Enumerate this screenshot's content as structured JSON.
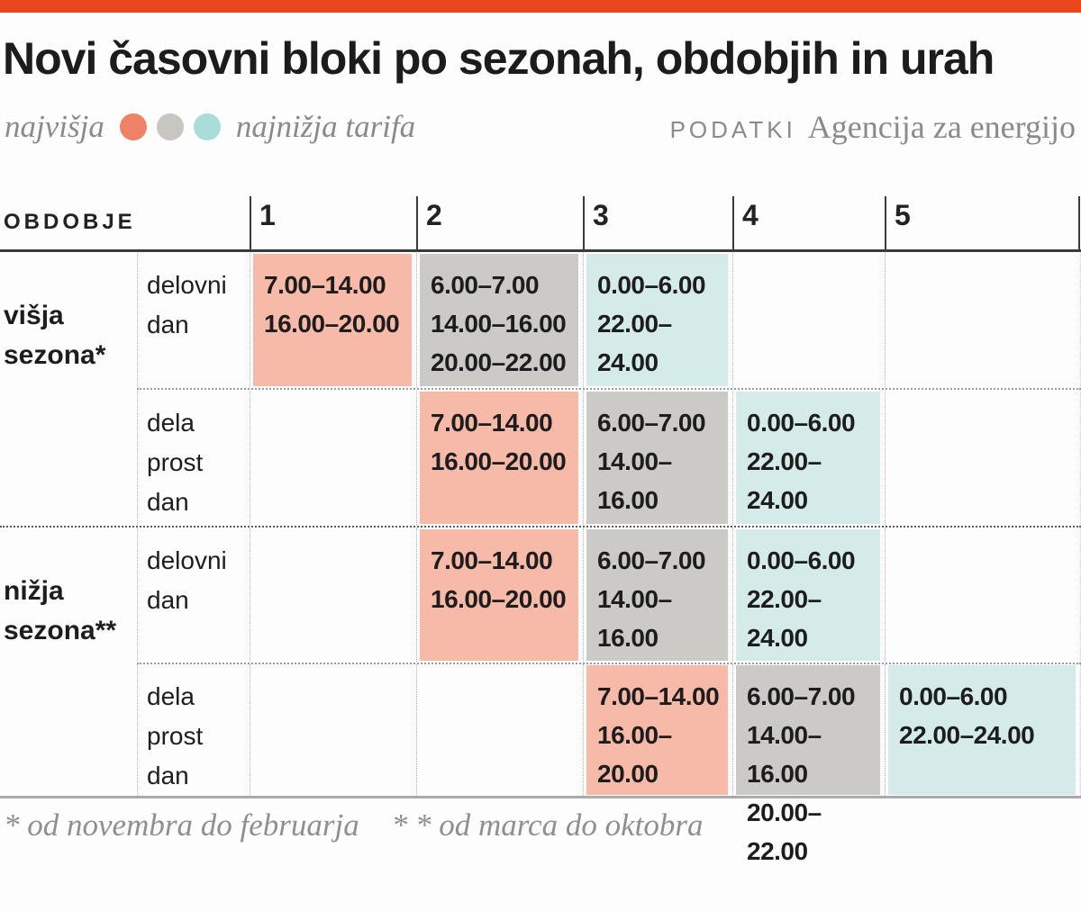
{
  "colors": {
    "accent": "#e8461c",
    "tariff_high": "#f7b9a8",
    "tariff_mid": "#cbcac6",
    "tariff_low": "#d5ebea",
    "dot_high": "#ef8266",
    "dot_mid": "#c7c6c1",
    "dot_low": "#a9dcdb"
  },
  "header": {
    "title": "Novi časovni bloki po sezonah, obdobjih in urah",
    "legend": {
      "left_label": "najvišja",
      "right_label": "najnižja tarifa"
    },
    "source_label": "PODATKI",
    "source_value": "Agencija za energijo"
  },
  "table": {
    "corner_label": "OBDOBJE",
    "block_headers": [
      "1",
      "2",
      "3",
      "4",
      "5"
    ],
    "rows": [
      {
        "season": "višja\nsezona*",
        "day": "delovni\ndan",
        "blocks": {
          "b1": "7.00–14.00\n16.00–20.00",
          "b2": "6.00–7.00\n14.00–16.00\n20.00–22.00",
          "b3": "0.00–6.00\n22.00–24.00"
        }
      },
      {
        "season": "",
        "day": "dela\nprost\ndan",
        "blocks": {
          "b2": "7.00–14.00\n16.00–20.00",
          "b3": "6.00–7.00\n14.00–16.00\n20.00–22.00",
          "b4": "0.00–6.00\n22.00–24.00"
        }
      },
      {
        "season": "nižja\nsezona**",
        "day": "delovni\ndan",
        "blocks": {
          "b2": "7.00–14.00\n16.00–20.00",
          "b3": "6.00–7.00\n14.00–16.00\n20.00–22.00",
          "b4": "0.00–6.00\n22.00–24.00"
        }
      },
      {
        "season": "",
        "day": "dela\nprost\ndan",
        "blocks": {
          "b3": "7.00–14.00\n16.00–20.00",
          "b4": "6.00–7.00\n14.00–16.00\n20.00–22.00",
          "b5": "0.00–6.00\n22.00–24.00"
        }
      }
    ]
  },
  "footer": {
    "note1": "* od novembra do februarja",
    "note2": "* * od marca do oktobra"
  },
  "chart_data": {
    "type": "table",
    "title": "Novi časovni bloki po sezonah, obdobjih in urah",
    "legend": {
      "highest": "najvišja",
      "lowest": "najnižja tarifa",
      "scale": [
        "high",
        "mid",
        "low"
      ]
    },
    "source": "PODATKI Agencija za energijo",
    "columns": [
      "1",
      "2",
      "3",
      "4",
      "5"
    ],
    "rows": [
      {
        "season": "višja sezona*",
        "day": "delovni dan",
        "blocks": {
          "1": {
            "tariff": "high",
            "hours": [
              "7.00–14.00",
              "16.00–20.00"
            ]
          },
          "2": {
            "tariff": "mid",
            "hours": [
              "6.00–7.00",
              "14.00–16.00",
              "20.00–22.00"
            ]
          },
          "3": {
            "tariff": "low",
            "hours": [
              "0.00–6.00",
              "22.00–24.00"
            ]
          }
        }
      },
      {
        "season": "višja sezona*",
        "day": "dela prost dan",
        "blocks": {
          "2": {
            "tariff": "high",
            "hours": [
              "7.00–14.00",
              "16.00–20.00"
            ]
          },
          "3": {
            "tariff": "mid",
            "hours": [
              "6.00–7.00",
              "14.00–16.00",
              "20.00–22.00"
            ]
          },
          "4": {
            "tariff": "low",
            "hours": [
              "0.00–6.00",
              "22.00–24.00"
            ]
          }
        }
      },
      {
        "season": "nižja sezona**",
        "day": "delovni dan",
        "blocks": {
          "2": {
            "tariff": "high",
            "hours": [
              "7.00–14.00",
              "16.00–20.00"
            ]
          },
          "3": {
            "tariff": "mid",
            "hours": [
              "6.00–7.00",
              "14.00–16.00",
              "20.00–22.00"
            ]
          },
          "4": {
            "tariff": "low",
            "hours": [
              "0.00–6.00",
              "22.00–24.00"
            ]
          }
        }
      },
      {
        "season": "nižja sezona**",
        "day": "dela prost dan",
        "blocks": {
          "3": {
            "tariff": "high",
            "hours": [
              "7.00–14.00",
              "16.00–20.00"
            ]
          },
          "4": {
            "tariff": "mid",
            "hours": [
              "6.00–7.00",
              "14.00–16.00",
              "20.00–22.00"
            ]
          },
          "5": {
            "tariff": "low",
            "hours": [
              "0.00–6.00",
              "22.00–24.00"
            ]
          }
        }
      }
    ],
    "notes": [
      "* od novembra do februarja",
      "* * od marca do oktobra"
    ]
  }
}
